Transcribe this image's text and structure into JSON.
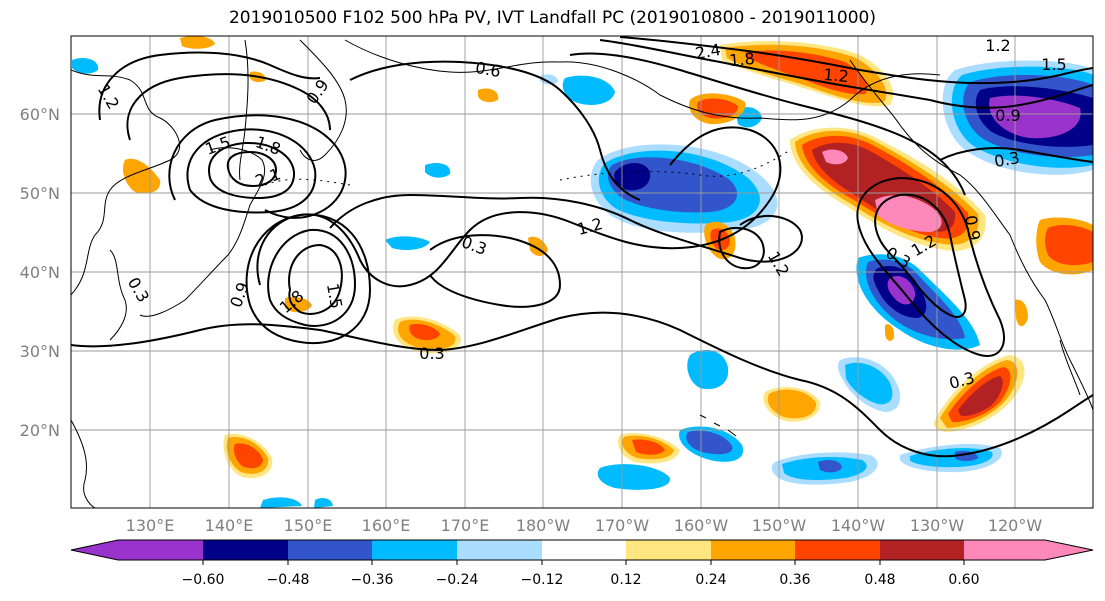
{
  "title": "2019010500 F102 500 hPa PV, IVT Landfall PC (2019010800 - 2019011000)",
  "lat_labels": [
    "60°N",
    "50°N",
    "40°N",
    "30°N",
    "20°N"
  ],
  "lon_labels": [
    "130°E",
    "140°E",
    "150°E",
    "160°E",
    "170°E",
    "180°W",
    "170°W",
    "160°W",
    "150°W",
    "140°W",
    "130°W",
    "120°W"
  ],
  "colorbar": {
    "colors": [
      "#9933cc",
      "#000088",
      "#3355cc",
      "#00bbff",
      "#aaddff",
      "#ffffff",
      "#ffe680",
      "#ffa500",
      "#ff4400",
      "#b22222",
      "#ff88bb"
    ],
    "tick_labels": [
      "−0.60",
      "−0.48",
      "−0.36",
      "−0.24",
      "−0.12",
      "0.12",
      "0.24",
      "0.36",
      "0.48",
      "0.60"
    ]
  },
  "contour_labels": [
    "2.4",
    "1.8",
    "1.2",
    "1.5",
    "0.6",
    "0.9",
    "1.2",
    "1.5",
    "1.8",
    "2.1",
    "0.9",
    "1.2",
    "0.3",
    "1.2",
    "1.8",
    "1.5",
    "0.3",
    "0.3",
    "1.2",
    "0.9",
    "0.3",
    "0.9",
    "1.2",
    "0.3",
    "0.3"
  ]
}
